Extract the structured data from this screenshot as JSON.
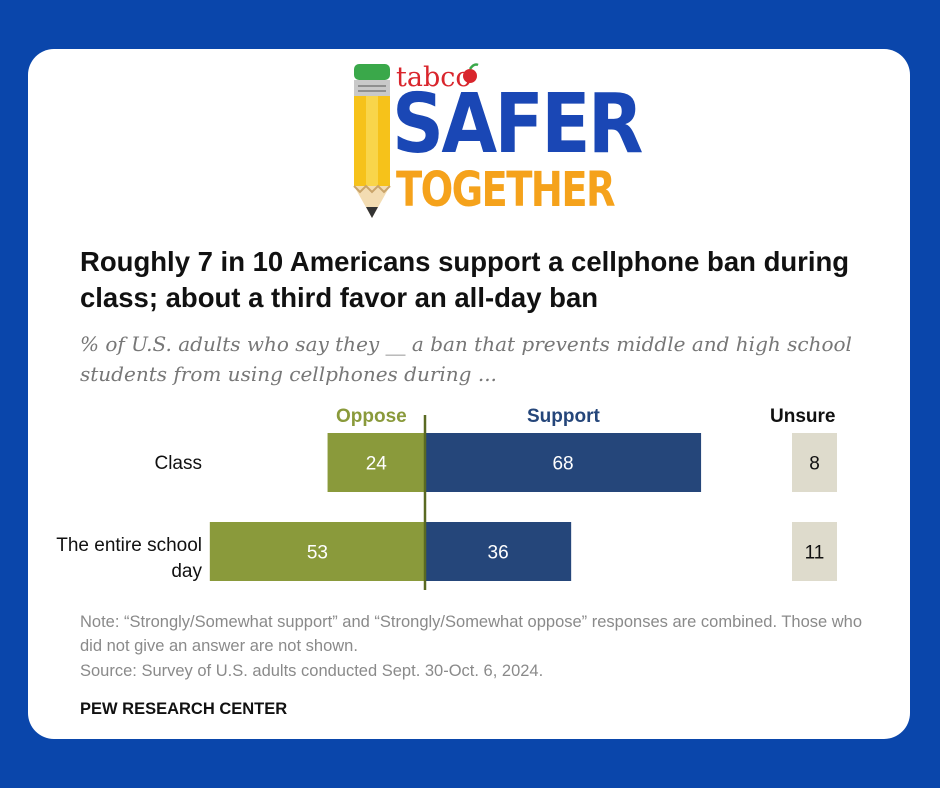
{
  "logo": {
    "brand_small": "tabco",
    "line1": "SAFER",
    "line2": "TOGETHER"
  },
  "colors": {
    "background": "#0a46ab",
    "oppose": "#8a9a3b",
    "support": "#25467a",
    "unsure": "#dedbcc"
  },
  "chart_data": {
    "type": "bar",
    "title": "Roughly 7 in 10 Americans support a cellphone ban during class; about a third favor an all-day ban",
    "subtitle": "% of U.S. adults who say they __ a ban that prevents middle and high school students from using cellphones during ...",
    "categories": [
      "Class",
      "The entire school day"
    ],
    "series": [
      {
        "name": "Oppose",
        "values": [
          24,
          53
        ]
      },
      {
        "name": "Support",
        "values": [
          68,
          36
        ]
      },
      {
        "name": "Unsure",
        "values": [
          8,
          11
        ]
      }
    ],
    "note": "Note: “Strongly/Somewhat support” and “Strongly/Somewhat oppose” responses are combined. Those who did not give an answer are not shown.",
    "source": "Source: Survey of U.S. adults conducted Sept. 30-Oct. 6, 2024.",
    "brand": "PEW RESEARCH CENTER"
  }
}
